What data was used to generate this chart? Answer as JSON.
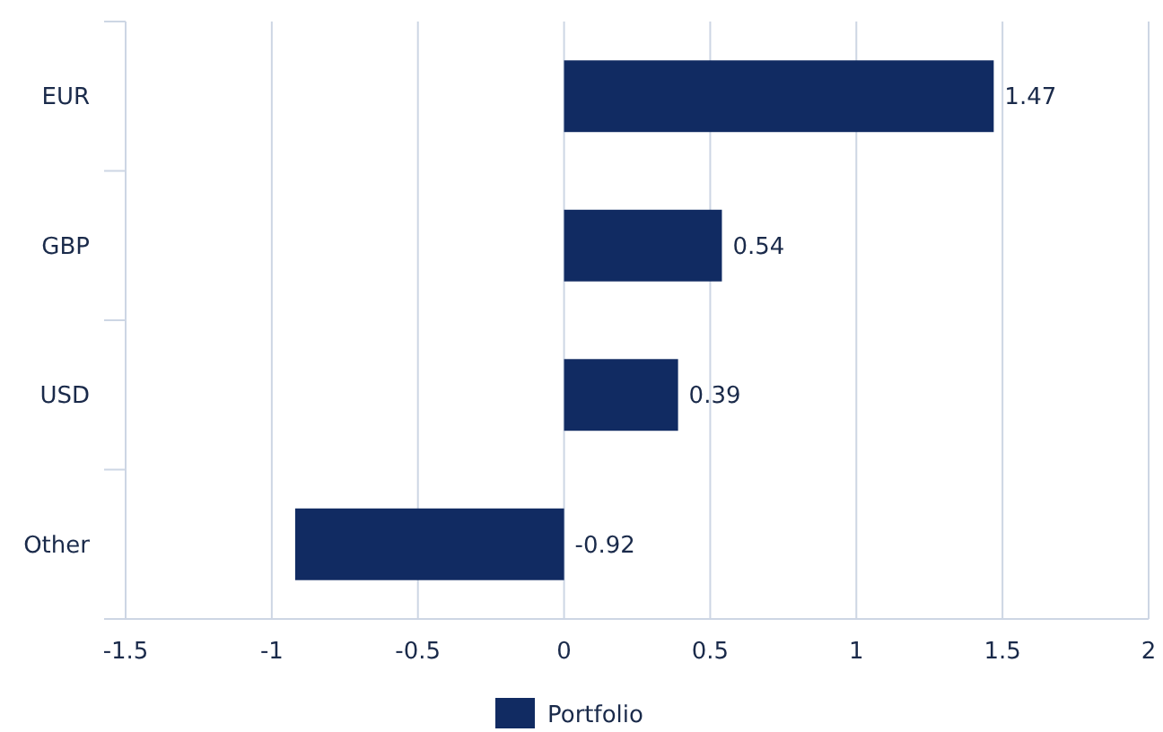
{
  "chart_data": {
    "type": "bar",
    "orientation": "horizontal",
    "categories": [
      "EUR",
      "GBP",
      "USD",
      "Other"
    ],
    "series": [
      {
        "name": "Portfolio",
        "color": "#112b62",
        "values": [
          1.47,
          0.54,
          0.39,
          -0.92
        ]
      }
    ],
    "xlim": [
      -1.5,
      2
    ],
    "xticks": [
      -1.5,
      -1,
      -0.5,
      0,
      0.5,
      1,
      1.5,
      2
    ],
    "grid": "x",
    "data_labels": true,
    "legend": "bottom"
  }
}
